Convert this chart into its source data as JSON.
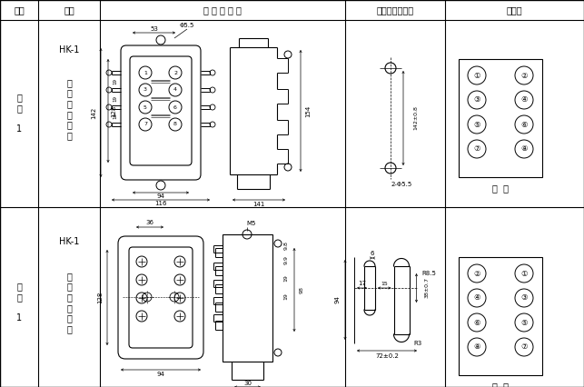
{
  "bg_color": "#ffffff",
  "line_color": "#000000",
  "col_dividers": [
    42,
    110,
    380,
    490
  ],
  "row_dividers": [
    22,
    228
  ],
  "header_texts": [
    [
      21,
      11,
      "图号"
    ],
    [
      76,
      11,
      "结构"
    ],
    [
      245,
      11,
      "外 形 尺 寸 图"
    ],
    [
      435,
      11,
      "安装开孔尺寸图"
    ],
    [
      566,
      11,
      "端子图"
    ]
  ]
}
